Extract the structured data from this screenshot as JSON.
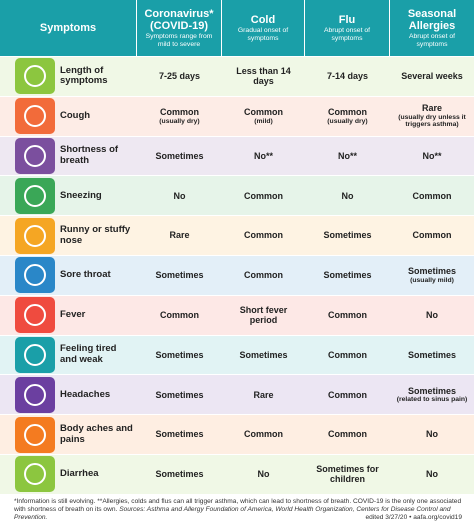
{
  "header": {
    "symptoms": "Symptoms",
    "columns": [
      {
        "title": "Coronavirus* (COVID-19)",
        "subtitle": "Symptoms range from mild to severe"
      },
      {
        "title": "Cold",
        "subtitle": "Gradual onset of symptoms"
      },
      {
        "title": "Flu",
        "subtitle": "Abrupt onset of symptoms"
      },
      {
        "title": "Seasonal Allergies",
        "subtitle": "Abrupt onset of symptoms"
      }
    ]
  },
  "rows": [
    {
      "symptom": "Length of symptoms",
      "color": "#8cc63f",
      "cells": [
        "7-25 days",
        "Less than 14 days",
        "7-14 days",
        "Several weeks"
      ]
    },
    {
      "symptom": "Cough",
      "color": "#f26b3a",
      "cells": [
        {
          "text": "Common",
          "note": "(usually dry)"
        },
        {
          "text": "Common",
          "note": "(mild)"
        },
        {
          "text": "Common",
          "note": "(usually dry)"
        },
        {
          "text": "Rare",
          "note": "(usually dry unless it triggers asthma)"
        }
      ]
    },
    {
      "symptom": "Shortness of breath",
      "color": "#7b4f9e",
      "cells": [
        "Sometimes",
        "No**",
        "No**",
        "No**"
      ]
    },
    {
      "symptom": "Sneezing",
      "color": "#3aa757",
      "cells": [
        "No",
        "Common",
        "No",
        "Common"
      ]
    },
    {
      "symptom": "Runny or stuffy nose",
      "color": "#f5a623",
      "cells": [
        "Rare",
        "Common",
        "Sometimes",
        "Common"
      ]
    },
    {
      "symptom": "Sore throat",
      "color": "#2a87c8",
      "cells": [
        "Sometimes",
        "Common",
        "Sometimes",
        {
          "text": "Sometimes",
          "note": "(usually mild)"
        }
      ]
    },
    {
      "symptom": "Fever",
      "color": "#ef4b3f",
      "cells": [
        "Common",
        "Short fever period",
        "Common",
        "No"
      ]
    },
    {
      "symptom": "Feeling tired and weak",
      "color": "#1a9fa8",
      "cells": [
        "Sometimes",
        "Sometimes",
        "Common",
        "Sometimes"
      ]
    },
    {
      "symptom": "Headaches",
      "color": "#6b3fa0",
      "cells": [
        "Sometimes",
        "Rare",
        "Common",
        {
          "text": "Sometimes",
          "note": "(related to sinus pain)"
        }
      ]
    },
    {
      "symptom": "Body aches and pains",
      "color": "#f47b20",
      "cells": [
        "Sometimes",
        "Common",
        "Common",
        "No"
      ]
    },
    {
      "symptom": "Diarrhea",
      "color": "#8cc63f",
      "cells": [
        "Sometimes",
        "No",
        "Sometimes for children",
        "No"
      ]
    }
  ],
  "footer": {
    "note": "*Information is still evolving. **Allergies, colds and flus can all trigger asthma, which can lead to shortness of breath. COVID-19 is the only one associated with shortness of breath on its own.",
    "sources": "Sources: Asthma and Allergy Foundation of America, World Health Organization, Centers for Disease Control and Prevention.",
    "edited": "edited 3/27/20 • aafa.org/covid19"
  }
}
